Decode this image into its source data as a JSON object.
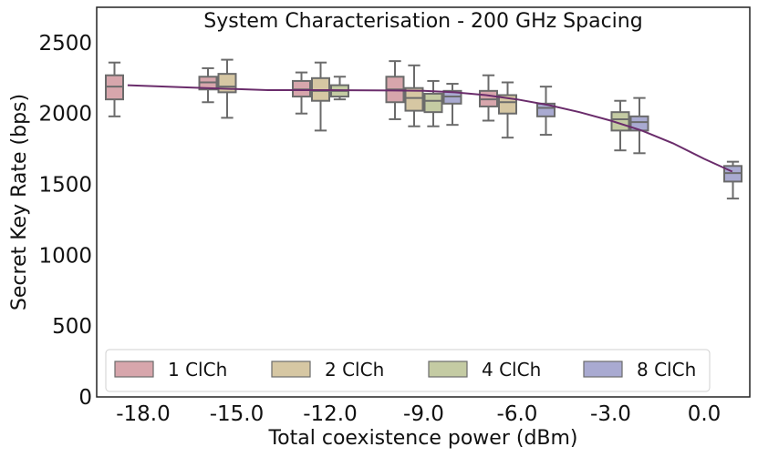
{
  "chart_data": {
    "type": "box",
    "title": "System Characterisation - 200 GHz Spacing",
    "xlabel": "Total coexistence power (dBm)",
    "ylabel": "Secret Key Rate (bps)",
    "ylim": [
      0,
      2750
    ],
    "yticks": [
      0,
      500,
      1000,
      1500,
      2000,
      2500
    ],
    "categories": [
      "-18.0",
      "-15.0",
      "-12.0",
      "-9.0",
      "-6.0",
      "-3.0",
      "0.0"
    ],
    "legend_position": "lower-center",
    "series": [
      {
        "name": "1 ClCh",
        "color": "#d7a6ac",
        "boxes": [
          {
            "category": "-18.0",
            "min": 1980,
            "q1": 2100,
            "median": 2190,
            "q3": 2270,
            "max": 2360
          },
          {
            "category": "-15.0",
            "min": 2080,
            "q1": 2170,
            "median": 2220,
            "q3": 2260,
            "max": 2320
          },
          {
            "category": "-12.0",
            "min": 2000,
            "q1": 2120,
            "median": 2170,
            "q3": 2230,
            "max": 2290
          },
          {
            "category": "-9.0",
            "min": 1960,
            "q1": 2080,
            "median": 2170,
            "q3": 2260,
            "max": 2370
          },
          {
            "category": "-6.0",
            "min": 1950,
            "q1": 2050,
            "median": 2100,
            "q3": 2160,
            "max": 2270
          }
        ]
      },
      {
        "name": "2 ClCh",
        "color": "#d6c7a3",
        "boxes": [
          {
            "category": "-15.0",
            "min": 1970,
            "q1": 2150,
            "median": 2190,
            "q3": 2280,
            "max": 2380
          },
          {
            "category": "-12.0",
            "min": 1880,
            "q1": 2090,
            "median": 2160,
            "q3": 2250,
            "max": 2360
          },
          {
            "category": "-9.0",
            "min": 1910,
            "q1": 2020,
            "median": 2110,
            "q3": 2180,
            "max": 2340
          },
          {
            "category": "-6.0",
            "min": 1830,
            "q1": 2000,
            "median": 2080,
            "q3": 2130,
            "max": 2220
          }
        ]
      },
      {
        "name": "4 ClCh",
        "color": "#c4cba3",
        "boxes": [
          {
            "category": "-12.0",
            "min": 2100,
            "q1": 2120,
            "median": 2160,
            "q3": 2200,
            "max": 2260
          },
          {
            "category": "-9.0",
            "min": 1910,
            "q1": 2010,
            "median": 2090,
            "q3": 2140,
            "max": 2230
          },
          {
            "category": "-3.0",
            "min": 1740,
            "q1": 1880,
            "median": 1960,
            "q3": 2010,
            "max": 2090
          }
        ]
      },
      {
        "name": "8 ClCh",
        "color": "#a9aad1",
        "boxes": [
          {
            "category": "-9.0",
            "min": 1920,
            "q1": 2070,
            "median": 2120,
            "q3": 2160,
            "max": 2210
          },
          {
            "category": "-6.0",
            "min": 1850,
            "q1": 1980,
            "median": 2040,
            "q3": 2070,
            "max": 2190
          },
          {
            "category": "-3.0",
            "min": 1720,
            "q1": 1880,
            "median": 1940,
            "q3": 1980,
            "max": 2110
          },
          {
            "category": "0.0",
            "min": 1400,
            "q1": 1520,
            "median": 1580,
            "q3": 1630,
            "max": 1660
          }
        ]
      }
    ],
    "fit_line": {
      "color": "#6a2c6b",
      "x": [
        -18.5,
        -16,
        -14,
        -12,
        -10,
        -9,
        -8,
        -7,
        -6,
        -5,
        -4,
        -3,
        -2,
        -1,
        0,
        0.9
      ],
      "y": [
        2200,
        2180,
        2165,
        2165,
        2163,
        2160,
        2150,
        2130,
        2100,
        2060,
        2010,
        1950,
        1880,
        1790,
        1680,
        1590
      ]
    }
  }
}
